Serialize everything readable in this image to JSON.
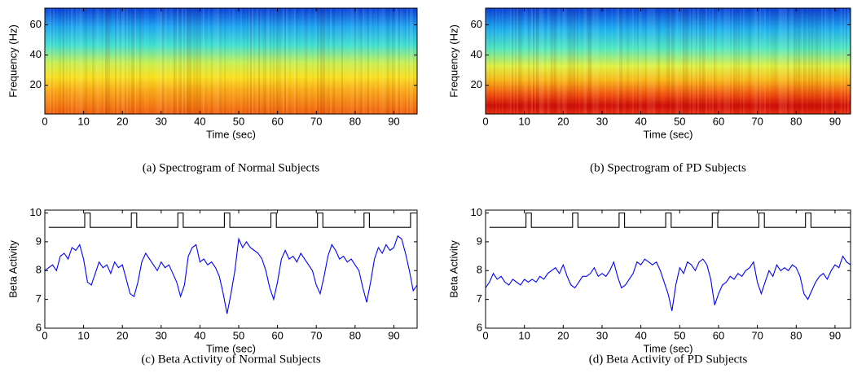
{
  "chart_data": [
    {
      "type": "spectrogram",
      "caption": "(a) Spectrogram of Normal Subjects",
      "xlabel": "Time (sec)",
      "ylabel": "Frequency (Hz)",
      "xlim": [
        0,
        96
      ],
      "ylim": [
        1,
        71
      ],
      "xticks": [
        0,
        10,
        20,
        30,
        40,
        50,
        60,
        70,
        80,
        90
      ],
      "yticks": [
        20,
        40,
        60
      ]
    },
    {
      "type": "spectrogram",
      "caption": "(b) Spectrogram of PD Subjects",
      "xlabel": "Time (sec)",
      "ylabel": "Frequency (Hz)",
      "xlim": [
        0,
        94
      ],
      "ylim": [
        1,
        71
      ],
      "xticks": [
        0,
        10,
        20,
        30,
        40,
        50,
        60,
        70,
        80,
        90
      ],
      "yticks": [
        20,
        40,
        60
      ]
    },
    {
      "type": "line",
      "caption": "(c) Beta Activity of Normal Subjects",
      "xlabel": "Time (sec)",
      "ylabel": "Beta Activity",
      "xlim": [
        0,
        96
      ],
      "ylim": [
        6,
        10.1
      ],
      "xticks": [
        0,
        10,
        20,
        30,
        40,
        50,
        60,
        70,
        80,
        90
      ],
      "yticks": [
        6,
        7,
        8,
        9,
        10
      ],
      "series": [
        {
          "color": "#000000",
          "x": [
            1,
            10.3,
            10.3,
            11.7,
            11.7,
            22.3,
            22.3,
            23.7,
            23.7,
            34.3,
            34.3,
            35.7,
            35.7,
            46.3,
            46.3,
            47.7,
            47.7,
            58.3,
            58.3,
            59.7,
            59.7,
            70.3,
            70.3,
            71.7,
            71.7,
            82.3,
            82.3,
            83.7,
            83.7,
            94.3,
            94.3,
            96
          ],
          "values": [
            9.5,
            9.5,
            10,
            10,
            9.5,
            9.5,
            10,
            10,
            9.5,
            9.5,
            10,
            10,
            9.5,
            9.5,
            10,
            10,
            9.5,
            9.5,
            10,
            10,
            9.5,
            9.5,
            10,
            10,
            9.5,
            9.5,
            10,
            10,
            9.5,
            9.5,
            10,
            10
          ]
        },
        {
          "color": "#0000ff",
          "x": [
            0,
            1,
            2,
            3,
            4,
            5,
            6,
            7,
            8,
            9,
            10,
            11,
            12,
            13,
            14,
            15,
            16,
            17,
            18,
            19,
            20,
            21,
            22,
            23,
            24,
            25,
            26,
            27,
            28,
            29,
            30,
            31,
            32,
            33,
            34,
            35,
            36,
            37,
            38,
            39,
            40,
            41,
            42,
            43,
            44,
            45,
            46,
            47,
            48,
            49,
            50,
            51,
            52,
            53,
            54,
            55,
            56,
            57,
            58,
            59,
            60,
            61,
            62,
            63,
            64,
            65,
            66,
            67,
            68,
            69,
            70,
            71,
            72,
            73,
            74,
            75,
            76,
            77,
            78,
            79,
            80,
            81,
            82,
            83,
            84,
            85,
            86,
            87,
            88,
            89,
            90,
            91,
            92,
            93,
            94,
            95,
            96
          ],
          "values": [
            8.0,
            8.1,
            8.2,
            8.0,
            8.5,
            8.6,
            8.4,
            8.8,
            8.7,
            8.9,
            8.4,
            7.6,
            7.5,
            7.9,
            8.3,
            8.1,
            8.2,
            7.9,
            8.3,
            8.1,
            8.2,
            7.7,
            7.2,
            7.1,
            7.6,
            8.3,
            8.6,
            8.4,
            8.2,
            8.0,
            8.3,
            8.1,
            8.2,
            7.9,
            7.6,
            7.1,
            7.5,
            8.5,
            8.8,
            8.9,
            8.3,
            8.4,
            8.2,
            8.3,
            8.1,
            7.8,
            7.2,
            6.5,
            7.2,
            8.0,
            9.1,
            8.8,
            9.0,
            8.8,
            8.7,
            8.6,
            8.4,
            8.0,
            7.4,
            7.0,
            7.6,
            8.4,
            8.7,
            8.4,
            8.5,
            8.3,
            8.6,
            8.4,
            8.2,
            8.0,
            7.5,
            7.2,
            7.8,
            8.5,
            8.9,
            8.7,
            8.4,
            8.5,
            8.3,
            8.4,
            8.2,
            8.0,
            7.4,
            6.9,
            7.6,
            8.4,
            8.8,
            8.6,
            8.9,
            8.7,
            8.8,
            9.2,
            9.1,
            8.6,
            8.0,
            7.3,
            7.5
          ]
        }
      ]
    },
    {
      "type": "line",
      "caption": "(d) Beta Activity of PD Subjects",
      "xlabel": "Time (sec)",
      "ylabel": "Beta Activity",
      "xlim": [
        0,
        94
      ],
      "ylim": [
        6,
        10.1
      ],
      "xticks": [
        0,
        10,
        20,
        30,
        40,
        50,
        60,
        70,
        80,
        90
      ],
      "yticks": [
        6,
        7,
        8,
        9,
        10
      ],
      "series": [
        {
          "color": "#000000",
          "x": [
            1,
            10.4,
            10.4,
            11.8,
            11.8,
            22.4,
            22.4,
            23.8,
            23.8,
            34.4,
            34.4,
            35.8,
            35.8,
            46.4,
            46.4,
            47.8,
            47.8,
            58.4,
            58.4,
            59.8,
            59.8,
            70.4,
            70.4,
            71.8,
            71.8,
            82.4,
            82.4,
            83.8,
            83.8,
            94
          ],
          "values": [
            9.5,
            9.5,
            10,
            10,
            9.5,
            9.5,
            10,
            10,
            9.5,
            9.5,
            10,
            10,
            9.5,
            9.5,
            10,
            10,
            9.5,
            9.5,
            10,
            10,
            9.5,
            9.5,
            10,
            10,
            9.5,
            9.5,
            10,
            10,
            9.5,
            9.5
          ]
        },
        {
          "color": "#0000ff",
          "x": [
            0,
            1,
            2,
            3,
            4,
            5,
            6,
            7,
            8,
            9,
            10,
            11,
            12,
            13,
            14,
            15,
            16,
            17,
            18,
            19,
            20,
            21,
            22,
            23,
            24,
            25,
            26,
            27,
            28,
            29,
            30,
            31,
            32,
            33,
            34,
            35,
            36,
            37,
            38,
            39,
            40,
            41,
            42,
            43,
            44,
            45,
            46,
            47,
            48,
            49,
            50,
            51,
            52,
            53,
            54,
            55,
            56,
            57,
            58,
            59,
            60,
            61,
            62,
            63,
            64,
            65,
            66,
            67,
            68,
            69,
            70,
            71,
            72,
            73,
            74,
            75,
            76,
            77,
            78,
            79,
            80,
            81,
            82,
            83,
            84,
            85,
            86,
            87,
            88,
            89,
            90,
            91,
            92,
            93,
            94
          ],
          "values": [
            7.4,
            7.6,
            7.9,
            7.7,
            7.8,
            7.6,
            7.5,
            7.7,
            7.6,
            7.5,
            7.7,
            7.6,
            7.7,
            7.6,
            7.8,
            7.7,
            7.9,
            8.0,
            8.1,
            7.9,
            8.2,
            7.8,
            7.5,
            7.4,
            7.6,
            7.8,
            7.8,
            7.9,
            8.1,
            7.8,
            7.9,
            7.8,
            8.0,
            8.3,
            7.8,
            7.4,
            7.5,
            7.7,
            7.9,
            8.3,
            8.2,
            8.4,
            8.3,
            8.2,
            8.3,
            8.0,
            7.6,
            7.2,
            6.6,
            7.5,
            8.1,
            7.9,
            8.3,
            8.2,
            8.0,
            8.3,
            8.4,
            8.2,
            7.7,
            6.8,
            7.2,
            7.5,
            7.6,
            7.8,
            7.7,
            7.9,
            7.8,
            8.0,
            8.1,
            8.3,
            7.6,
            7.2,
            7.6,
            8.0,
            7.8,
            8.2,
            8.0,
            8.1,
            8.0,
            8.2,
            8.1,
            7.8,
            7.2,
            7.0,
            7.3,
            7.6,
            7.8,
            7.9,
            7.7,
            8.0,
            8.2,
            8.1,
            8.5,
            8.3,
            8.2
          ]
        }
      ]
    }
  ]
}
